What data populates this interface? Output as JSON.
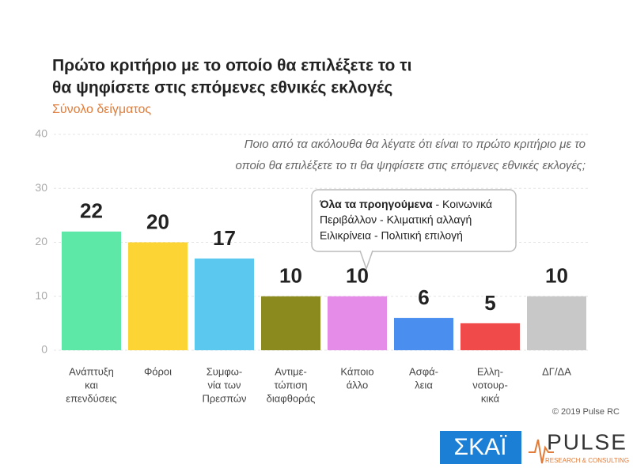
{
  "chart_data": {
    "type": "bar",
    "title": [
      "Πρώτο κριτήριο με το οποίο θα επιλέξετε το τι",
      "θα ψηφίσετε στις επόμενες εθνικές εκλογές"
    ],
    "subtitle": "Σύνολο δείγματος",
    "question": [
      "Ποιο από τα ακόλουθα θα λέγατε ότι είναι το πρώτο κριτήριο με το",
      "οποίο θα επιλέξετε το τι θα ψηφίσετε στις επόμενες εθνικές εκλογές;"
    ],
    "annotation": [
      "Όλα τα προηγούμενα - Κοινωνικά",
      "Περιβάλλον - Κλιματική αλλαγή",
      "Ειλικρίνεια - Πολιτική επιλογή"
    ],
    "categories": [
      [
        "Ανάπτυξη",
        "και",
        "επενδύσεις"
      ],
      [
        "Φόροι"
      ],
      [
        "Συμφω-",
        "νία των",
        "Πρεσπών"
      ],
      [
        "Αντιμε-",
        "τώπιση",
        "διαφθοράς"
      ],
      [
        "Κάποιο",
        "άλλο"
      ],
      [
        "Ασφά-",
        "λεια"
      ],
      [
        "Ελλη-",
        "νοτουρ-",
        "κικά"
      ],
      [
        "ΔΓ/ΔΑ"
      ]
    ],
    "values": [
      22,
      20,
      17,
      10,
      10,
      6,
      5,
      10
    ],
    "colors": [
      "#5ee8a8",
      "#fcd535",
      "#5bc8f0",
      "#8b8a1e",
      "#e58ce8",
      "#4a8ff0",
      "#f04a4a",
      "#c8c8c8"
    ],
    "ylim": [
      0,
      40
    ],
    "yticks": [
      0,
      10,
      20,
      30,
      40
    ],
    "grid": true,
    "copyright": "© 2019 Pulse RC",
    "logos": {
      "skai": "ΣΚΑΪ",
      "pulse": "PULSE",
      "pulse_tagline": "RESEARCH & CONSULTING"
    }
  }
}
